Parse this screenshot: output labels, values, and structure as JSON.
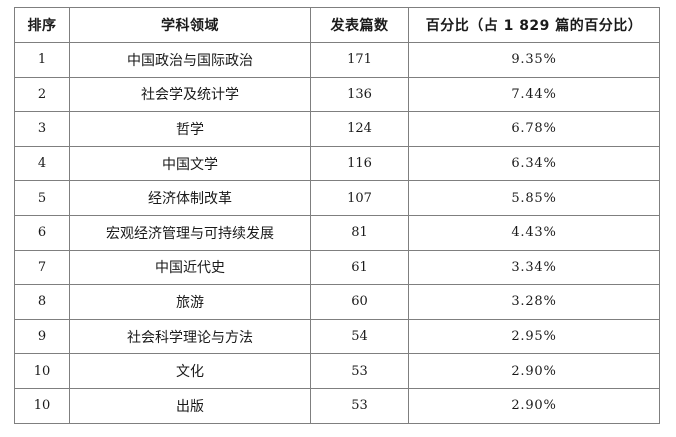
{
  "table": {
    "headers": {
      "rank": "排序",
      "field": "学科领域",
      "count": "发表篇数",
      "percent": "百分比（占 1 829 篇的百分比）"
    },
    "rows": [
      {
        "rank": "1",
        "field": "中国政治与国际政治",
        "count": "171",
        "percent": "9.35%"
      },
      {
        "rank": "2",
        "field": "社会学及统计学",
        "count": "136",
        "percent": "7.44%"
      },
      {
        "rank": "3",
        "field": "哲学",
        "count": "124",
        "percent": "6.78%"
      },
      {
        "rank": "4",
        "field": "中国文学",
        "count": "116",
        "percent": "6.34%"
      },
      {
        "rank": "5",
        "field": "经济体制改革",
        "count": "107",
        "percent": "5.85%"
      },
      {
        "rank": "6",
        "field": "宏观经济管理与可持续发展",
        "count": "81",
        "percent": "4.43%"
      },
      {
        "rank": "7",
        "field": "中国近代史",
        "count": "61",
        "percent": "3.34%"
      },
      {
        "rank": "8",
        "field": "旅游",
        "count": "60",
        "percent": "3.28%"
      },
      {
        "rank": "9",
        "field": "社会科学理论与方法",
        "count": "54",
        "percent": "2.95%"
      },
      {
        "rank": "10",
        "field": "文化",
        "count": "53",
        "percent": "2.90%"
      },
      {
        "rank": "10",
        "field": "出版",
        "count": "53",
        "percent": "2.90%"
      }
    ]
  }
}
